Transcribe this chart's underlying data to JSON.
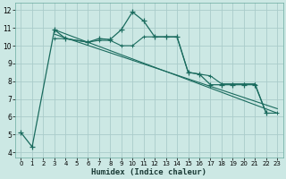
{
  "xlabel": "Humidex (Indice chaleur)",
  "background_color": "#cce8e4",
  "grid_color": "#aaccca",
  "line_color": "#1a6b5e",
  "x_ticks": [
    0,
    1,
    2,
    3,
    4,
    5,
    6,
    7,
    8,
    9,
    10,
    11,
    12,
    13,
    14,
    15,
    16,
    17,
    18,
    19,
    20,
    21,
    22,
    23
  ],
  "y_ticks": [
    4,
    5,
    6,
    7,
    8,
    9,
    10,
    11,
    12
  ],
  "ylim": [
    3.7,
    12.4
  ],
  "xlim": [
    -0.5,
    23.5
  ],
  "main_x": [
    0,
    1,
    3,
    4,
    6,
    7,
    8,
    9,
    10,
    11,
    12,
    13,
    14,
    15,
    16,
    17,
    18,
    19,
    20,
    21,
    22
  ],
  "main_y": [
    5.1,
    4.3,
    10.9,
    10.4,
    10.2,
    10.4,
    10.35,
    10.9,
    11.9,
    11.4,
    10.5,
    10.5,
    10.5,
    8.5,
    8.4,
    7.8,
    7.8,
    7.8,
    7.8,
    7.8,
    6.2
  ],
  "flat_x": [
    3,
    4,
    6,
    7,
    8,
    9,
    10,
    11,
    12,
    13,
    14,
    15,
    16,
    17,
    18,
    19,
    20,
    21,
    22,
    23
  ],
  "flat_y": [
    10.4,
    10.4,
    10.2,
    10.3,
    10.3,
    10.0,
    10.0,
    10.5,
    10.5,
    10.5,
    10.5,
    8.5,
    8.4,
    8.3,
    7.85,
    7.85,
    7.85,
    7.85,
    6.2,
    6.2
  ],
  "line1_x": [
    3,
    23
  ],
  "line1_y": [
    10.9,
    6.2
  ],
  "line2_x": [
    3,
    23
  ],
  "line2_y": [
    10.65,
    6.45
  ]
}
